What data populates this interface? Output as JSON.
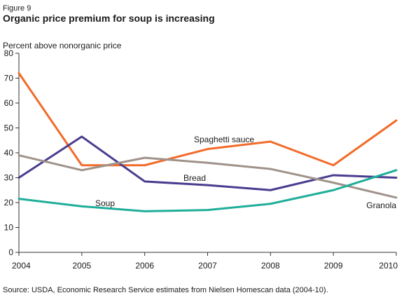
{
  "figure_label": "Figure 9",
  "chart_data": {
    "type": "line",
    "title": "Organic price premium for soup is increasing",
    "ylabel": "Percent above nonorganic price",
    "xlabel": "",
    "x": [
      "2004",
      "2005",
      "2006",
      "2007",
      "2008",
      "2009",
      "2010"
    ],
    "ylim": [
      0,
      80
    ],
    "yticks": [
      0,
      10,
      20,
      30,
      40,
      50,
      60,
      70,
      80
    ],
    "grid": false,
    "legend": "inline labels",
    "series": [
      {
        "name": "Spaghetti sauce",
        "color": "#f26b2a",
        "values": [
          72,
          35,
          35,
          41.5,
          44.5,
          35,
          53
        ]
      },
      {
        "name": "Bread",
        "color": "#4a3d8f",
        "values": [
          30,
          46.5,
          28.5,
          27,
          25,
          31,
          30
        ]
      },
      {
        "name": "Granola",
        "color": "#a0928a",
        "values": [
          39,
          33,
          38,
          36,
          33.5,
          28,
          22
        ]
      },
      {
        "name": "Soup",
        "color": "#1fae9a",
        "values": [
          21.5,
          18.5,
          16.5,
          17,
          19.5,
          25,
          33
        ]
      }
    ]
  },
  "source": "Source: USDA, Economic Research Service estimates from Nielsen Homescan data (2004-10)."
}
